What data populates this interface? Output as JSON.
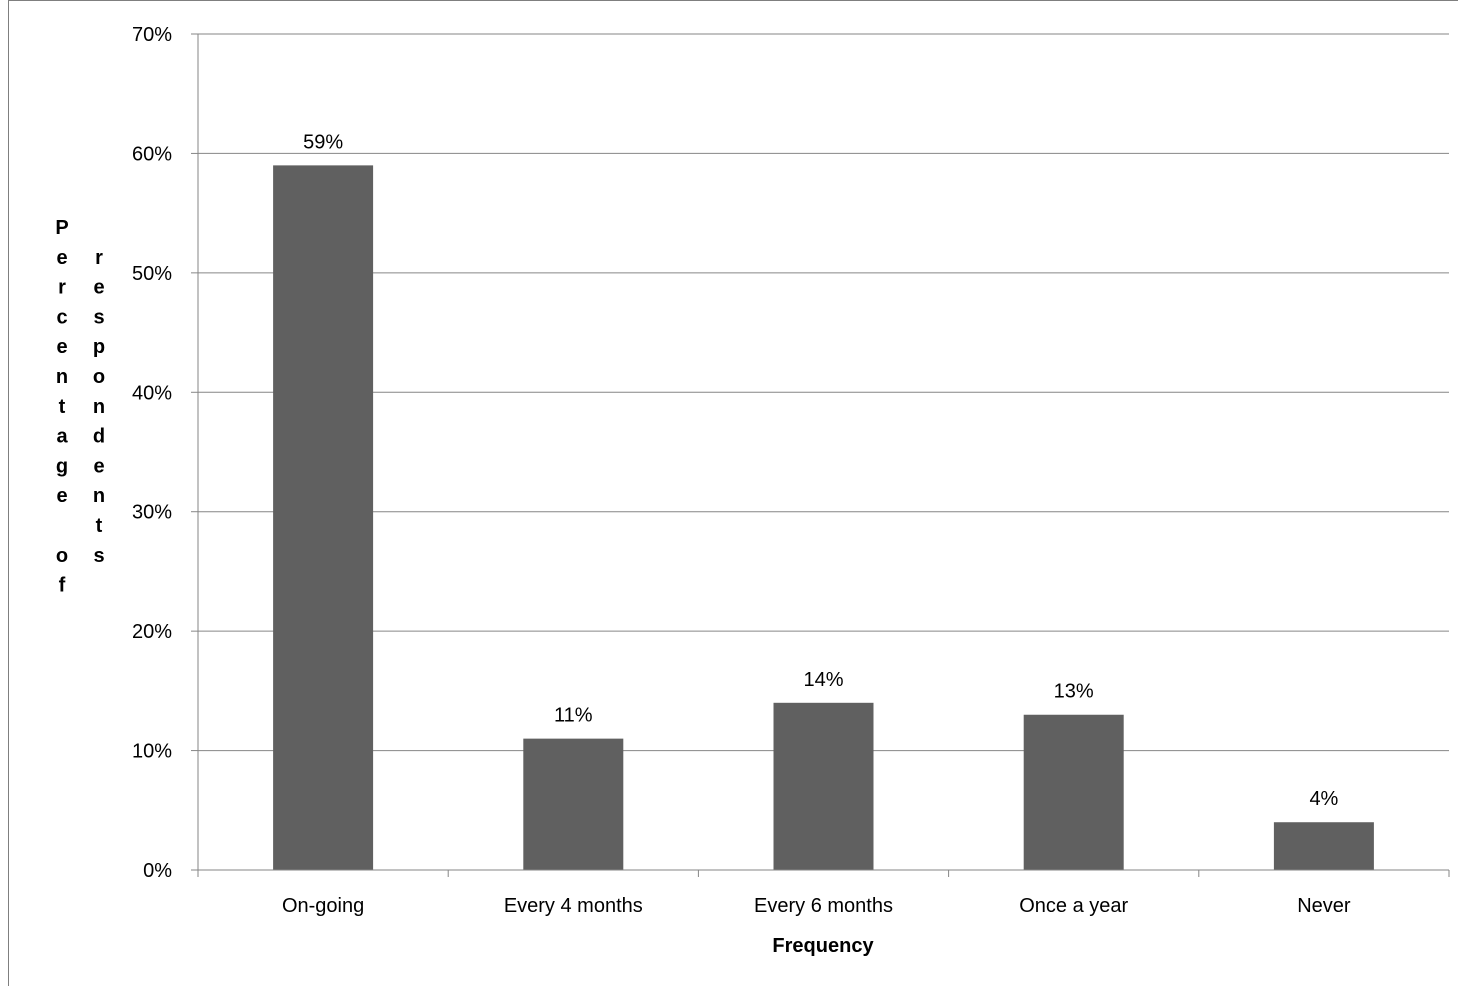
{
  "chart_data": {
    "type": "bar",
    "categories": [
      "On-going",
      "Every 4 months",
      "Every 6 months",
      "Once a year",
      "Never"
    ],
    "values": [
      59,
      11,
      14,
      13,
      4
    ],
    "data_labels": [
      "59%",
      "11%",
      "14%",
      "13%",
      "4%"
    ],
    "xlabel": "Frequency",
    "ylabel": "Percentage of respondents",
    "ylim": [
      0,
      70
    ],
    "yticks": [
      0,
      10,
      20,
      30,
      40,
      50,
      60,
      70
    ],
    "ytick_labels": [
      "0%",
      "10%",
      "20%",
      "30%",
      "40%",
      "50%",
      "60%",
      "70%"
    ],
    "grid": true,
    "legend": "none",
    "colors": {
      "bar": "#606060",
      "gridline": "#868686",
      "axis": "#868686"
    }
  }
}
